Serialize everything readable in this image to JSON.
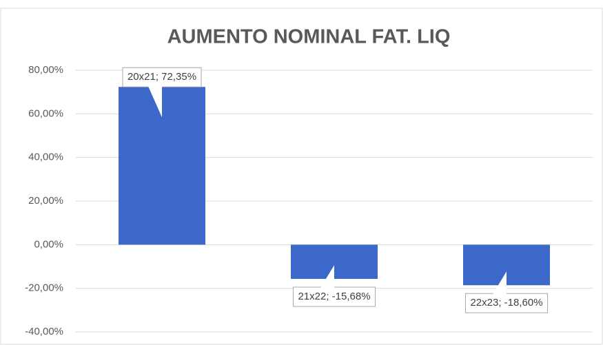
{
  "chart_data": {
    "type": "bar",
    "title": "AUMENTO NOMINAL FAT. LIQ",
    "values": [
      72.35,
      -15.68,
      -18.6
    ],
    "value_labels": [
      "20x21; 72,35%",
      "21x22; -15,68%",
      "22x23; -18,60%"
    ],
    "color": "#3b68c9",
    "ylim": [
      -40,
      80
    ],
    "yticks": [
      {
        "value": -40,
        "label": "-40,00%"
      },
      {
        "value": -20,
        "label": "-20,00%"
      },
      {
        "value": 0,
        "label": "0,00%"
      },
      {
        "value": 20,
        "label": "20,00%"
      },
      {
        "value": 40,
        "label": "40,00%"
      },
      {
        "value": 60,
        "label": "60,00%"
      },
      {
        "value": 80,
        "label": "80,00%"
      }
    ],
    "grid": true
  }
}
